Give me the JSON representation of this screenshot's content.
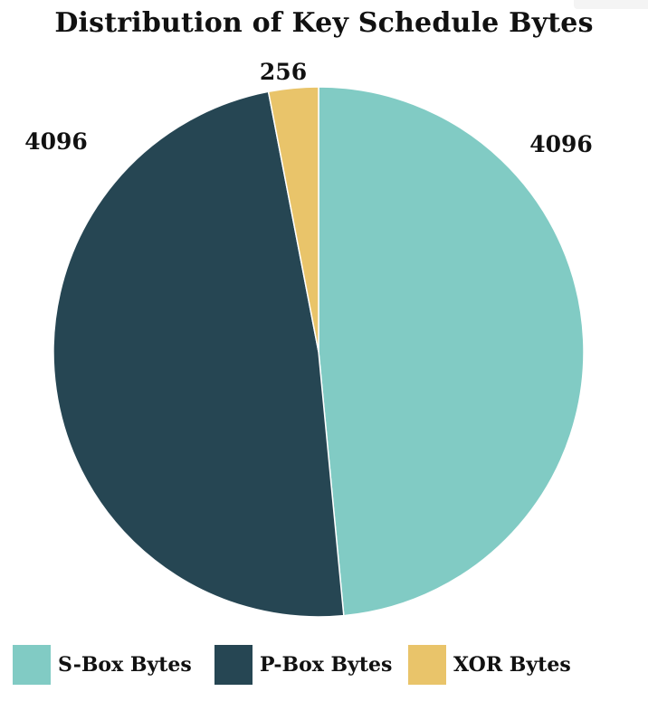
{
  "chart_data": {
    "type": "pie",
    "title": "Distribution of Key Schedule Bytes",
    "categories": [
      "S-Box Bytes",
      "P-Box Bytes",
      "XOR Bytes"
    ],
    "values": [
      4096,
      4096,
      256
    ],
    "labels": [
      "4096",
      "4096",
      "256"
    ],
    "colors": [
      "#81cbc4",
      "#264653",
      "#e9c46a"
    ],
    "start_angle": "top",
    "direction": "clockwise",
    "legend_position": "bottom"
  }
}
